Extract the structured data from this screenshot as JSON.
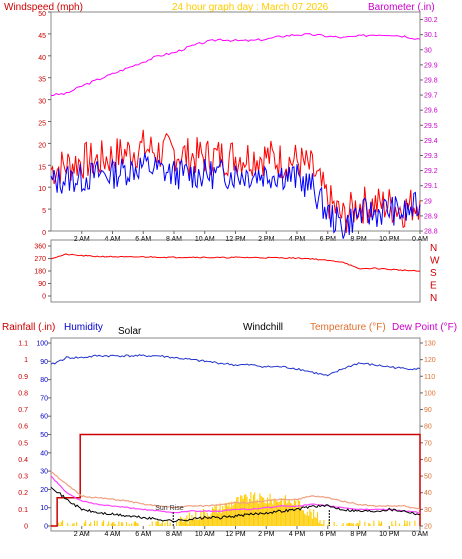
{
  "title": "24 hour graph day : March 07 2026",
  "x_ticks": [
    "2 AM",
    "4 AM",
    "6 AM",
    "8 AM",
    "10 AM",
    "12 PM",
    "2 PM",
    "4 PM",
    "6 PM",
    "8 PM",
    "10 PM",
    "0 AM"
  ],
  "colors": {
    "wind": "#ff0000",
    "gust": "#ff0000",
    "wind_avg": "#0000ff",
    "barometer": "#ff00ff",
    "direction": "#ff0000",
    "humidity": "#2233cc",
    "rain": "#cc0000",
    "temperature": "#f0a080",
    "dewpoint": "#ff44ff",
    "windchill": "#000000",
    "solar": "#ffcc00",
    "sunrise_line": "#000000",
    "left_axis_a": "#cc0000",
    "left_axis_b": "#0000cc",
    "right_axis_a": "#cc00cc",
    "right_axis_b": "#e07030"
  },
  "labels": {
    "windspeed": "Windspeed (mph)",
    "barometer": "Barometer (.in)",
    "rainfall": "Rainfall (.in)",
    "humidity": "Humidity",
    "solar": "Solar",
    "windchill": "Windchill",
    "temperature": "Temperature (°F)",
    "dewpoint": "Dew Point (°F)",
    "sunrise": "Sun Rise",
    "compass": [
      "N",
      "W",
      "S",
      "E",
      "N"
    ]
  },
  "chart_data": [
    {
      "type": "line",
      "xlabel": "",
      "ylabel": "Windspeed (mph)",
      "ylabel_right": "Barometer (.in)",
      "x": [
        0,
        1,
        2,
        3,
        4,
        5,
        6,
        7,
        8,
        9,
        10,
        11,
        12,
        13,
        14,
        15,
        16,
        17,
        18,
        19,
        20,
        21,
        22,
        23,
        24
      ],
      "ylim": [
        0,
        50
      ],
      "ylim_right": [
        28.8,
        30.25
      ],
      "y_ticks": [
        0,
        5,
        10,
        15,
        20,
        25,
        30,
        35,
        40,
        45,
        50
      ],
      "y_ticks_right": [
        "28.8",
        "28.9",
        "29",
        "29.1",
        "29.2",
        "29.3",
        "29.4",
        "29.5",
        "29.6",
        "29.7",
        "29.8",
        "29.9",
        "30",
        "30.1",
        "30.2"
      ],
      "series": [
        {
          "name": "",
          "axis": "left",
          "values": [
            14,
            15,
            16,
            16,
            17,
            18,
            19,
            18,
            18,
            17,
            17,
            17,
            17,
            17,
            17,
            16,
            16,
            14,
            7,
            3,
            6,
            6,
            6,
            5,
            7
          ]
        },
        {
          "name": "",
          "axis": "left",
          "values": [
            11,
            12,
            12,
            13,
            13,
            14,
            15,
            14,
            13,
            13,
            13,
            13,
            13,
            13,
            13,
            13,
            12,
            10,
            4,
            1,
            4,
            4,
            5,
            4,
            6
          ]
        },
        {
          "name": "",
          "axis": "right",
          "values": [
            29.7,
            29.71,
            29.76,
            29.8,
            29.84,
            29.88,
            29.92,
            29.96,
            29.98,
            30.02,
            30.05,
            30.07,
            30.06,
            30.06,
            30.07,
            30.09,
            30.1,
            30.1,
            30.09,
            30.08,
            30.09,
            30.1,
            30.1,
            30.09,
            30.07
          ]
        }
      ]
    },
    {
      "type": "line",
      "xlabel": "",
      "ylabel": "",
      "x": [
        0,
        1,
        2,
        3,
        4,
        5,
        6,
        7,
        8,
        9,
        10,
        11,
        12,
        13,
        14,
        15,
        16,
        17,
        18,
        19,
        20,
        21,
        22,
        23,
        24
      ],
      "ylim": [
        0,
        360
      ],
      "y_ticks": [
        0,
        90,
        180,
        270,
        360
      ],
      "series": [
        {
          "name": "",
          "values": [
            270,
            300,
            290,
            285,
            283,
            280,
            282,
            280,
            278,
            280,
            278,
            276,
            278,
            277,
            276,
            275,
            273,
            268,
            255,
            245,
            195,
            200,
            192,
            185,
            178
          ]
        }
      ]
    },
    {
      "type": "line",
      "xlabel": "",
      "ylabel": "Humidity",
      "x": [
        0,
        1,
        2,
        3,
        4,
        5,
        6,
        7,
        8,
        9,
        10,
        11,
        12,
        13,
        14,
        15,
        16,
        17,
        18,
        19,
        20,
        21,
        22,
        23,
        24
      ],
      "ylim": [
        0,
        100
      ],
      "y_ticks": [
        0,
        10,
        20,
        30,
        40,
        50,
        60,
        70,
        80,
        90,
        100
      ],
      "y_ticks_rain": [
        "0",
        "0.1",
        "0.2",
        "0.3",
        "0.4",
        "0.5",
        "0.6",
        "0.7",
        "0.8",
        "0.9",
        "1",
        "1.1"
      ],
      "y_ticks_right": [
        20,
        30,
        40,
        50,
        60,
        70,
        80,
        90,
        100,
        110,
        120,
        130
      ],
      "ylim_right": [
        20,
        130
      ],
      "series": [
        {
          "name": "Humidity",
          "axis": "left",
          "values": [
            88,
            92,
            92,
            93,
            93,
            93,
            93,
            93,
            92,
            91,
            90,
            89,
            88,
            88,
            87,
            87,
            86,
            84,
            82,
            86,
            89,
            88,
            87,
            86,
            86
          ]
        },
        {
          "name": "Rainfall (.in)",
          "axis": "rain",
          "values": [
            0,
            0.17,
            0.55,
            0.55,
            0.55,
            0.55,
            0.55,
            0.55,
            0.55,
            0.55,
            0.55,
            0.55,
            0.55,
            0.55,
            0.55,
            0.55,
            0.55,
            0.55,
            0.55,
            0.55,
            0.55,
            0.55,
            0.55,
            0.55,
            0.55
          ]
        },
        {
          "name": "Temperature (°F)",
          "axis": "right",
          "values": [
            53,
            45,
            38,
            37,
            36,
            35,
            33,
            32,
            31,
            32,
            32,
            33,
            34,
            34,
            35,
            36,
            36,
            38,
            37,
            35,
            33,
            32,
            32,
            32,
            30
          ]
        },
        {
          "name": "Dew Point (°F)",
          "axis": "right",
          "values": [
            50,
            40,
            35,
            33,
            32,
            31,
            30,
            29,
            28,
            29,
            29,
            29,
            30,
            30,
            31,
            32,
            32,
            33,
            32,
            31,
            30,
            30,
            30,
            29,
            28
          ]
        },
        {
          "name": "Windchill",
          "axis": "right",
          "values": [
            44,
            36,
            30,
            28,
            27,
            26,
            25,
            24,
            23,
            24,
            25,
            25,
            26,
            27,
            28,
            29,
            30,
            32,
            32,
            30,
            29,
            29,
            30,
            29,
            27
          ]
        },
        {
          "name": "Solar",
          "axis": "right",
          "values": [
            20,
            20,
            20,
            20,
            20,
            20,
            20,
            20,
            21,
            25,
            28,
            31,
            35,
            37,
            36,
            36,
            34,
            27,
            21,
            20,
            20,
            20,
            20,
            20,
            20
          ]
        }
      ],
      "annotations": [
        {
          "x": 7.95,
          "text": "Sun Rise"
        }
      ]
    }
  ]
}
